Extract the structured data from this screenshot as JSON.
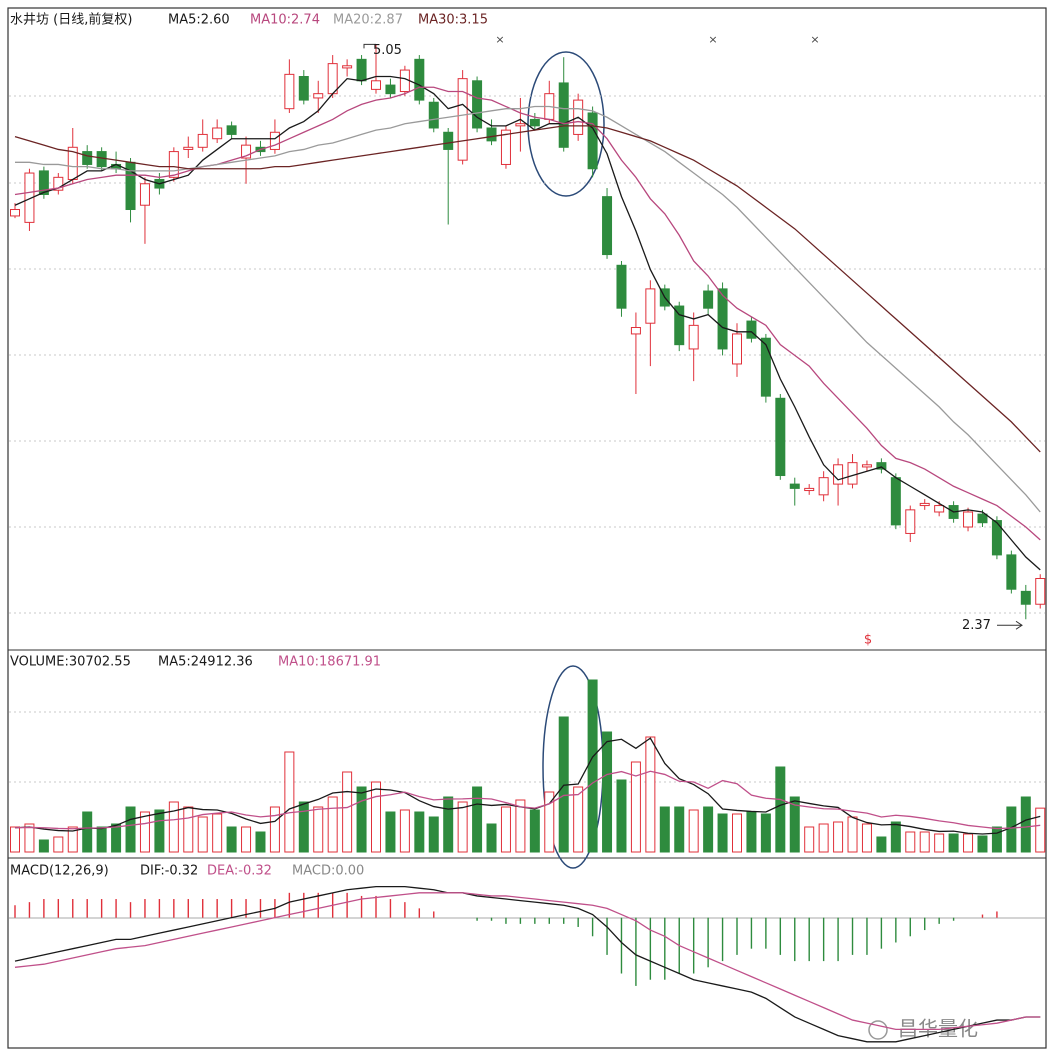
{
  "chart_data": [
    {
      "type": "candlestick",
      "title": "水井坊 (日线,前复权)",
      "open": [
        4.25,
        4.22,
        4.46,
        4.37,
        4.42,
        4.55,
        4.55,
        4.49,
        4.5,
        4.3,
        4.42,
        4.43,
        4.56,
        4.57,
        4.61,
        4.67,
        4.52,
        4.57,
        4.56,
        4.75,
        4.9,
        4.8,
        4.82,
        4.94,
        4.98,
        4.84,
        4.86,
        4.83,
        4.98,
        4.78,
        4.64,
        4.51,
        4.88,
        4.66,
        4.49,
        4.67,
        4.7,
        4.7,
        4.87,
        4.63,
        4.73,
        4.34,
        4.02,
        3.7,
        3.75,
        3.91,
        3.83,
        3.63,
        3.9,
        3.91,
        3.56,
        3.76,
        3.68,
        3.4,
        3.0,
        2.97,
        2.95,
        3.0,
        3.0,
        3.08,
        3.1,
        3.03,
        2.77,
        2.9,
        2.87,
        2.9,
        2.8,
        2.86,
        2.83,
        2.67,
        2.5,
        2.44
      ],
      "high": [
        4.31,
        4.47,
        4.48,
        4.45,
        4.66,
        4.58,
        4.57,
        4.55,
        4.52,
        4.43,
        4.45,
        4.57,
        4.62,
        4.7,
        4.7,
        4.69,
        4.62,
        4.6,
        4.7,
        4.98,
        4.93,
        4.88,
        5.0,
        4.98,
        5.0,
        5.05,
        4.89,
        4.95,
        5.0,
        4.8,
        4.66,
        4.93,
        4.9,
        4.7,
        4.67,
        4.8,
        4.73,
        4.88,
        4.99,
        4.82,
        4.76,
        4.38,
        4.04,
        3.8,
        3.95,
        3.93,
        3.85,
        3.8,
        3.93,
        3.94,
        3.75,
        3.78,
        3.7,
        3.42,
        3.03,
        3.0,
        3.06,
        3.12,
        3.14,
        3.11,
        3.12,
        3.05,
        2.9,
        2.93,
        2.92,
        2.92,
        2.89,
        2.88,
        2.85,
        2.69,
        2.53,
        2.58
      ],
      "low": [
        4.24,
        4.18,
        4.33,
        4.35,
        4.4,
        4.47,
        4.46,
        4.45,
        4.22,
        4.12,
        4.35,
        4.41,
        4.52,
        4.55,
        4.59,
        4.61,
        4.4,
        4.53,
        4.54,
        4.73,
        4.77,
        4.73,
        4.8,
        4.9,
        4.86,
        4.82,
        4.8,
        4.81,
        4.77,
        4.64,
        4.21,
        4.49,
        4.64,
        4.58,
        4.47,
        4.55,
        4.65,
        4.68,
        4.55,
        4.6,
        4.43,
        4.05,
        3.78,
        3.42,
        3.55,
        3.81,
        3.62,
        3.48,
        3.79,
        3.6,
        3.5,
        3.66,
        3.38,
        3.02,
        2.9,
        2.95,
        2.92,
        2.9,
        2.98,
        3.06,
        3.05,
        2.79,
        2.73,
        2.88,
        2.85,
        2.82,
        2.78,
        2.8,
        2.65,
        2.49,
        2.37,
        2.42
      ],
      "close": [
        4.28,
        4.45,
        4.35,
        4.43,
        4.57,
        4.49,
        4.48,
        4.47,
        4.28,
        4.4,
        4.38,
        4.55,
        4.57,
        4.63,
        4.66,
        4.63,
        4.58,
        4.55,
        4.64,
        4.91,
        4.79,
        4.82,
        4.96,
        4.95,
        4.88,
        4.88,
        4.82,
        4.93,
        4.79,
        4.66,
        4.56,
        4.89,
        4.66,
        4.6,
        4.65,
        4.68,
        4.67,
        4.82,
        4.57,
        4.79,
        4.47,
        4.07,
        3.82,
        3.73,
        3.91,
        3.83,
        3.65,
        3.74,
        3.82,
        3.63,
        3.7,
        3.68,
        3.41,
        3.04,
        2.98,
        2.98,
        3.03,
        3.09,
        3.1,
        3.09,
        3.07,
        2.81,
        2.88,
        2.91,
        2.9,
        2.84,
        2.87,
        2.82,
        2.67,
        2.51,
        2.44,
        2.56
      ],
      "up_color": "#e0303a",
      "down_color": "#2e8b3e",
      "ylim": [
        2.25,
        5.21
      ],
      "series": [
        {
          "name": "MA5:2.60",
          "color": "#1a1a1a",
          "values": [
            4.3,
            4.33,
            4.36,
            4.38,
            4.42,
            4.46,
            4.46,
            4.49,
            4.46,
            4.42,
            4.4,
            4.42,
            4.44,
            4.51,
            4.56,
            4.61,
            4.61,
            4.61,
            4.61,
            4.66,
            4.69,
            4.74,
            4.82,
            4.89,
            4.88,
            4.9,
            4.9,
            4.89,
            4.86,
            4.82,
            4.75,
            4.77,
            4.71,
            4.67,
            4.67,
            4.7,
            4.65,
            4.68,
            4.68,
            4.71,
            4.66,
            4.54,
            4.34,
            4.18,
            4.0,
            3.87,
            3.79,
            3.77,
            3.79,
            3.73,
            3.71,
            3.71,
            3.65,
            3.49,
            3.36,
            3.22,
            3.09,
            3.02,
            3.04,
            3.06,
            3.08,
            3.03,
            2.99,
            2.95,
            2.91,
            2.87,
            2.88,
            2.87,
            2.82,
            2.74,
            2.66,
            2.6
          ]
        },
        {
          "name": "MA10:2.74",
          "color": "#b8487e",
          "values": [
            4.35,
            4.36,
            4.37,
            4.38,
            4.4,
            4.42,
            4.43,
            4.44,
            4.44,
            4.44,
            4.43,
            4.44,
            4.46,
            4.48,
            4.49,
            4.51,
            4.53,
            4.56,
            4.58,
            4.61,
            4.64,
            4.67,
            4.7,
            4.74,
            4.77,
            4.79,
            4.8,
            4.82,
            4.85,
            4.85,
            4.83,
            4.83,
            4.8,
            4.79,
            4.76,
            4.73,
            4.71,
            4.7,
            4.68,
            4.69,
            4.68,
            4.61,
            4.51,
            4.43,
            4.33,
            4.26,
            4.16,
            4.04,
            3.97,
            3.88,
            3.82,
            3.78,
            3.74,
            3.65,
            3.6,
            3.55,
            3.47,
            3.4,
            3.33,
            3.26,
            3.18,
            3.12,
            3.1,
            3.07,
            3.03,
            2.99,
            2.96,
            2.93,
            2.9,
            2.85,
            2.8,
            2.74
          ]
        },
        {
          "name": "MA20:2.87",
          "color": "#9a9a9a",
          "values": [
            4.5,
            4.5,
            4.49,
            4.49,
            4.48,
            4.48,
            4.47,
            4.47,
            4.46,
            4.46,
            4.46,
            4.46,
            4.47,
            4.48,
            4.49,
            4.5,
            4.51,
            4.52,
            4.53,
            4.55,
            4.56,
            4.58,
            4.59,
            4.61,
            4.63,
            4.65,
            4.66,
            4.68,
            4.69,
            4.7,
            4.71,
            4.72,
            4.73,
            4.74,
            4.75,
            4.75,
            4.76,
            4.76,
            4.75,
            4.75,
            4.74,
            4.71,
            4.67,
            4.63,
            4.59,
            4.55,
            4.5,
            4.45,
            4.4,
            4.35,
            4.29,
            4.22,
            4.15,
            4.08,
            4.01,
            3.94,
            3.87,
            3.8,
            3.73,
            3.66,
            3.6,
            3.54,
            3.48,
            3.42,
            3.36,
            3.29,
            3.23,
            3.16,
            3.09,
            3.02,
            2.95,
            2.87
          ]
        },
        {
          "name": "MA30:3.15",
          "color": "#6b2424",
          "values": [
            4.62,
            4.6,
            4.58,
            4.56,
            4.55,
            4.53,
            4.52,
            4.51,
            4.5,
            4.49,
            4.48,
            4.48,
            4.47,
            4.47,
            4.47,
            4.47,
            4.47,
            4.47,
            4.48,
            4.48,
            4.49,
            4.5,
            4.51,
            4.52,
            4.53,
            4.54,
            4.55,
            4.56,
            4.57,
            4.58,
            4.59,
            4.6,
            4.61,
            4.62,
            4.63,
            4.64,
            4.65,
            4.66,
            4.67,
            4.67,
            4.67,
            4.66,
            4.64,
            4.62,
            4.6,
            4.57,
            4.54,
            4.51,
            4.47,
            4.43,
            4.39,
            4.34,
            4.29,
            4.24,
            4.19,
            4.13,
            4.07,
            4.01,
            3.95,
            3.89,
            3.83,
            3.77,
            3.71,
            3.65,
            3.59,
            3.53,
            3.47,
            3.41,
            3.35,
            3.29,
            3.22,
            3.15
          ]
        }
      ],
      "annotations": [
        {
          "text": "5.05",
          "value": 5.05
        },
        {
          "text": "2.37",
          "value": 2.37
        }
      ],
      "top_markers": [
        "×",
        "×",
        "×"
      ],
      "signal": "$"
    },
    {
      "type": "bar",
      "title": "VOLUME:30702.55",
      "values": [
        17500,
        19600,
        8400,
        10500,
        17500,
        28000,
        17500,
        19600,
        31500,
        28000,
        29400,
        35000,
        31500,
        24500,
        26600,
        17500,
        17500,
        14000,
        31500,
        70000,
        35000,
        31500,
        38500,
        56000,
        45500,
        49000,
        28000,
        29400,
        28000,
        24500,
        38500,
        35000,
        45500,
        19600,
        31500,
        36400,
        29400,
        42000,
        94500,
        45500,
        120400,
        84000,
        50400,
        63000,
        80500,
        31500,
        31500,
        29400,
        31500,
        26600,
        26600,
        28000,
        26600,
        59500,
        38500,
        17500,
        19600,
        21000,
        24500,
        19600,
        10500,
        21000,
        14000,
        14000,
        12600,
        12600,
        12600,
        11200,
        17500,
        31500,
        38500,
        30702.55
      ],
      "ylim": [
        0,
        140000
      ],
      "series": [
        {
          "name": "MA5:24912.36",
          "color": "#1a1a1a",
          "values": [
            17000,
            17500,
            16000,
            15000,
            14700,
            16800,
            16400,
            18600,
            22800,
            25000,
            27000,
            28700,
            31100,
            29700,
            29400,
            27000,
            23100,
            20000,
            21400,
            30100,
            33600,
            36800,
            41300,
            42300,
            41300,
            44100,
            43400,
            41600,
            35900,
            31800,
            30000,
            31100,
            33600,
            32600,
            33300,
            31600,
            30200,
            33800,
            46700,
            47600,
            66500,
            77300,
            78900,
            72600,
            79700,
            62000,
            51300,
            47200,
            40800,
            30100,
            29100,
            28400,
            28000,
            32700,
            35800,
            34000,
            32300,
            31200,
            24200,
            20600,
            19000,
            19300,
            17800,
            15800,
            14400,
            14600,
            13100,
            12600,
            13200,
            17100,
            22300,
            24912.36
          ]
        },
        {
          "name": "MA10:18671.91",
          "color": "#c0508a",
          "values": [
            17000,
            17200,
            17000,
            16500,
            16300,
            16800,
            16900,
            17500,
            18700,
            19900,
            21900,
            22600,
            23800,
            26200,
            27200,
            28000,
            25900,
            24600,
            25500,
            27500,
            28500,
            29900,
            30600,
            31100,
            35700,
            38800,
            40100,
            41900,
            38800,
            36500,
            37100,
            37200,
            37600,
            37100,
            34600,
            31700,
            30700,
            33700,
            39600,
            40200,
            48300,
            54300,
            56300,
            53200,
            56500,
            54300,
            49500,
            49000,
            44600,
            50000,
            47800,
            39800,
            37600,
            36800,
            32900,
            31500,
            30300,
            30000,
            28500,
            27200,
            24500,
            25700,
            24900,
            23500,
            21800,
            20500,
            18600,
            17500,
            16400,
            16800,
            17500,
            18671.91
          ]
        }
      ]
    },
    {
      "type": "macd",
      "title": "MACD(12,26,9)",
      "histogram": {
        "name": "MACD:0.00",
        "color": "#888888",
        "values": [
          0.04,
          0.05,
          0.06,
          0.06,
          0.06,
          0.06,
          0.06,
          0.06,
          0.05,
          0.06,
          0.06,
          0.06,
          0.06,
          0.06,
          0.06,
          0.06,
          0.06,
          0.06,
          0.06,
          0.08,
          0.08,
          0.08,
          0.08,
          0.08,
          0.07,
          0.07,
          0.06,
          0.05,
          0.03,
          0.02,
          0.0,
          0.0,
          -0.01,
          -0.01,
          -0.02,
          -0.02,
          -0.02,
          -0.02,
          -0.02,
          -0.03,
          -0.06,
          -0.12,
          -0.18,
          -0.22,
          -0.2,
          -0.2,
          -0.18,
          -0.18,
          -0.16,
          -0.14,
          -0.12,
          -0.1,
          -0.1,
          -0.12,
          -0.14,
          -0.14,
          -0.14,
          -0.14,
          -0.12,
          -0.12,
          -0.1,
          -0.08,
          -0.06,
          -0.04,
          -0.02,
          -0.01,
          0.0,
          0.01,
          0.02,
          0.0,
          0.0,
          0.0
        ]
      },
      "ylim": [
        -0.42,
        0.16
      ],
      "series": [
        {
          "name": "DIF:-0.32",
          "color": "#1a1a1a",
          "values": [
            -0.14,
            -0.13,
            -0.12,
            -0.11,
            -0.1,
            -0.09,
            -0.08,
            -0.07,
            -0.07,
            -0.06,
            -0.05,
            -0.04,
            -0.03,
            -0.02,
            -0.01,
            0.0,
            0.01,
            0.02,
            0.03,
            0.05,
            0.06,
            0.07,
            0.08,
            0.09,
            0.095,
            0.1,
            0.1,
            0.1,
            0.095,
            0.09,
            0.08,
            0.08,
            0.07,
            0.065,
            0.06,
            0.055,
            0.05,
            0.045,
            0.04,
            0.03,
            0.01,
            -0.03,
            -0.08,
            -0.12,
            -0.14,
            -0.16,
            -0.18,
            -0.2,
            -0.21,
            -0.22,
            -0.23,
            -0.24,
            -0.26,
            -0.29,
            -0.32,
            -0.34,
            -0.36,
            -0.38,
            -0.39,
            -0.4,
            -0.4,
            -0.4,
            -0.39,
            -0.38,
            -0.37,
            -0.36,
            -0.35,
            -0.34,
            -0.33,
            -0.33,
            -0.32,
            -0.32
          ]
        },
        {
          "name": "DEA:-0.32",
          "color": "#c0508a",
          "values": [
            -0.16,
            -0.155,
            -0.15,
            -0.14,
            -0.13,
            -0.12,
            -0.11,
            -0.1,
            -0.095,
            -0.09,
            -0.08,
            -0.07,
            -0.06,
            -0.05,
            -0.04,
            -0.03,
            -0.02,
            -0.01,
            0.0,
            0.01,
            0.02,
            0.03,
            0.04,
            0.05,
            0.06,
            0.065,
            0.07,
            0.075,
            0.08,
            0.08,
            0.08,
            0.08,
            0.075,
            0.07,
            0.07,
            0.065,
            0.06,
            0.055,
            0.05,
            0.045,
            0.04,
            0.03,
            0.01,
            -0.01,
            -0.04,
            -0.06,
            -0.09,
            -0.11,
            -0.13,
            -0.15,
            -0.17,
            -0.19,
            -0.21,
            -0.23,
            -0.25,
            -0.27,
            -0.29,
            -0.31,
            -0.33,
            -0.34,
            -0.35,
            -0.36,
            -0.36,
            -0.36,
            -0.36,
            -0.355,
            -0.35,
            -0.345,
            -0.34,
            -0.33,
            -0.32,
            -0.32
          ]
        }
      ]
    }
  ],
  "watermark": "昌华量化"
}
